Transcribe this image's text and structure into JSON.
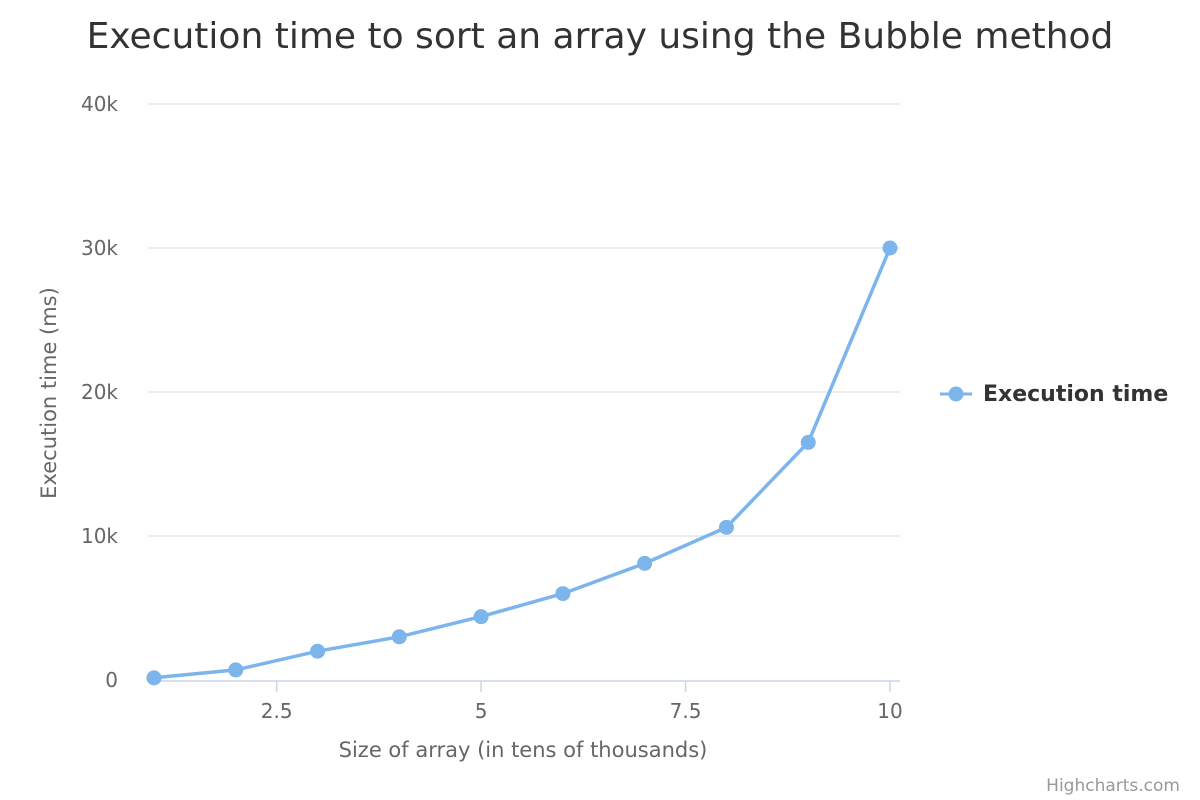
{
  "chart_data": {
    "type": "line",
    "title": "Execution time to sort an array using the Bubble method",
    "xlabel": "Size of array (in tens of thousands)",
    "ylabel": "Execution time (ms)",
    "xlim": [
      1,
      10
    ],
    "ylim": [
      0,
      40000
    ],
    "xticks": [
      2.5,
      5,
      7.5,
      10
    ],
    "xtick_labels": [
      "2.5",
      "5",
      "7.5",
      "10"
    ],
    "yticks": [
      0,
      10000,
      20000,
      30000,
      40000
    ],
    "ytick_labels": [
      "0",
      "10k",
      "20k",
      "30k",
      "40k"
    ],
    "grid": "horizontal",
    "legend_position": "right",
    "series": [
      {
        "name": "Execution time",
        "color": "#7cb5ec",
        "x": [
          1,
          2,
          3,
          4,
          5,
          6,
          7,
          8,
          9,
          10
        ],
        "y": [
          150,
          700,
          2000,
          3000,
          4400,
          6000,
          8100,
          10600,
          16500,
          30000
        ]
      }
    ],
    "credit": "Highcharts.com"
  }
}
